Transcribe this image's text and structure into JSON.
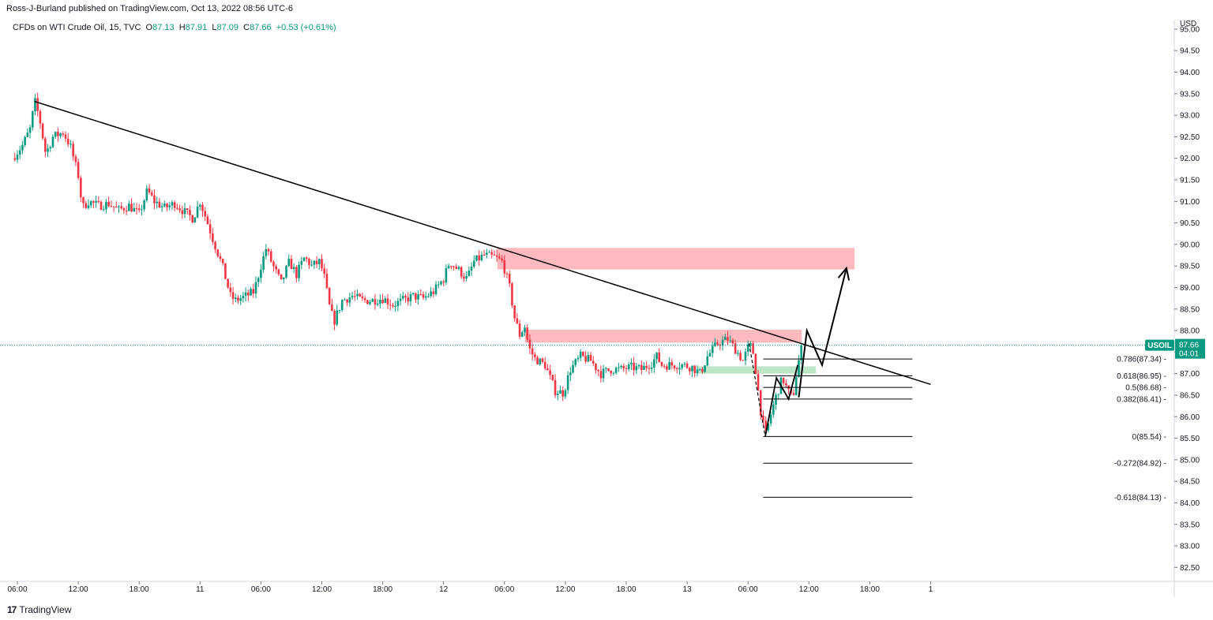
{
  "publisher": "Ross-J-Burland published on TradingView.com, Oct 13, 2022 08:56 UTC-6",
  "legend": {
    "symbol": "CFDs on WTI Crude Oil, 15, TVC",
    "open_label": "O",
    "open": "87.13",
    "high_label": "H",
    "high": "87.91",
    "low_label": "L",
    "low": "87.09",
    "close_label": "C",
    "close": "87.66",
    "change": "+0.53 (+0.61%)"
  },
  "footer": {
    "brand": "TradingView",
    "logo_mark": "17"
  },
  "price_label": {
    "ticker": "USOIL",
    "price": "87.66",
    "countdown": "04:01"
  },
  "colors": {
    "up": "#089981",
    "down": "#f23645",
    "zone_red": "#ffb3b8",
    "zone_green": "#b9e3c4",
    "line": "#000000"
  },
  "chart_data": {
    "type": "candlestick",
    "currency": "USD",
    "timeframe": "15",
    "ylim": [
      82.25,
      95.2
    ],
    "y_ticks": [
      "95.00",
      "94.50",
      "94.00",
      "93.50",
      "93.00",
      "92.50",
      "92.00",
      "91.50",
      "91.00",
      "90.50",
      "90.00",
      "89.50",
      "89.00",
      "88.50",
      "88.00",
      "87.50",
      "87.00",
      "86.50",
      "86.00",
      "85.50",
      "85.00",
      "84.50",
      "84.00",
      "83.50",
      "83.00",
      "82.50"
    ],
    "x_ticks": [
      {
        "label": "06:00",
        "t": 0
      },
      {
        "label": "12:00",
        "t": 6
      },
      {
        "label": "18:00",
        "t": 12
      },
      {
        "label": "11",
        "t": 18
      },
      {
        "label": "06:00",
        "t": 24
      },
      {
        "label": "12:00",
        "t": 30
      },
      {
        "label": "18:00",
        "t": 36
      },
      {
        "label": "12",
        "t": 42
      },
      {
        "label": "06:00",
        "t": 48
      },
      {
        "label": "12:00",
        "t": 54
      },
      {
        "label": "18:00",
        "t": 60
      },
      {
        "label": "13",
        "t": 66
      },
      {
        "label": "06:00",
        "t": 72
      },
      {
        "label": "12:00",
        "t": 78
      },
      {
        "label": "18:00",
        "t": 84
      },
      {
        "label": "1",
        "t": 90
      }
    ],
    "current_price": 87.66,
    "price_path": [
      [
        -0.5,
        92.0
      ],
      [
        0.5,
        92.3
      ],
      [
        1.3,
        92.7
      ],
      [
        1.7,
        93.35
      ],
      [
        2.2,
        92.9
      ],
      [
        2.8,
        92.1
      ],
      [
        3.5,
        92.5
      ],
      [
        4.5,
        92.6
      ],
      [
        5.2,
        92.3
      ],
      [
        6.0,
        91.6
      ],
      [
        6.4,
        90.85
      ],
      [
        7.0,
        91.0
      ],
      [
        8.0,
        90.9
      ],
      [
        9.0,
        90.95
      ],
      [
        10.0,
        90.8
      ],
      [
        11.0,
        90.9
      ],
      [
        12.0,
        90.7
      ],
      [
        12.8,
        91.25
      ],
      [
        13.5,
        91.0
      ],
      [
        14.5,
        90.85
      ],
      [
        15.5,
        90.95
      ],
      [
        16.5,
        90.75
      ],
      [
        17.3,
        90.6
      ],
      [
        18.0,
        91.0
      ],
      [
        18.6,
        90.6
      ],
      [
        19.3,
        90.1
      ],
      [
        20.2,
        89.5
      ],
      [
        21.0,
        88.8
      ],
      [
        21.5,
        88.7
      ],
      [
        22.5,
        88.8
      ],
      [
        23.3,
        88.9
      ],
      [
        24.0,
        89.5
      ],
      [
        24.5,
        89.9
      ],
      [
        25.2,
        89.5
      ],
      [
        26.0,
        89.1
      ],
      [
        26.8,
        89.6
      ],
      [
        27.5,
        89.3
      ],
      [
        28.3,
        89.7
      ],
      [
        29.0,
        89.5
      ],
      [
        29.8,
        89.6
      ],
      [
        30.3,
        89.2
      ],
      [
        30.7,
        88.6
      ],
      [
        31.2,
        88.2
      ],
      [
        32.0,
        88.7
      ],
      [
        33.0,
        88.8
      ],
      [
        34.0,
        88.7
      ],
      [
        35.0,
        88.7
      ],
      [
        36.0,
        88.75
      ],
      [
        37.0,
        88.6
      ],
      [
        38.0,
        88.7
      ],
      [
        39.0,
        88.8
      ],
      [
        40.0,
        88.75
      ],
      [
        41.0,
        88.9
      ],
      [
        42.0,
        89.2
      ],
      [
        42.6,
        89.6
      ],
      [
        43.5,
        89.4
      ],
      [
        44.3,
        89.2
      ],
      [
        45.0,
        89.6
      ],
      [
        46.0,
        89.75
      ],
      [
        47.0,
        89.7
      ],
      [
        47.8,
        89.6
      ],
      [
        48.5,
        89.0
      ],
      [
        49.0,
        88.3
      ],
      [
        49.5,
        87.9
      ],
      [
        50.0,
        88.1
      ],
      [
        50.4,
        87.6
      ],
      [
        51.0,
        87.35
      ],
      [
        52.0,
        87.2
      ],
      [
        53.0,
        86.6
      ],
      [
        53.8,
        86.55
      ],
      [
        54.5,
        87.1
      ],
      [
        55.5,
        87.4
      ],
      [
        56.5,
        87.3
      ],
      [
        57.5,
        87.0
      ],
      [
        58.5,
        87.1
      ],
      [
        59.5,
        87.1
      ],
      [
        60.5,
        87.15
      ],
      [
        61.5,
        87.1
      ],
      [
        62.5,
        87.25
      ],
      [
        63.0,
        87.4
      ],
      [
        63.5,
        87.2
      ],
      [
        64.5,
        87.2
      ],
      [
        65.5,
        87.2
      ],
      [
        66.5,
        87.15
      ],
      [
        67.3,
        87.0
      ],
      [
        68.0,
        87.4
      ],
      [
        69.0,
        87.7
      ],
      [
        70.0,
        87.8
      ],
      [
        70.8,
        87.55
      ],
      [
        71.5,
        87.3
      ],
      [
        72.0,
        87.6
      ],
      [
        72.4,
        87.65
      ],
      [
        72.8,
        87.0
      ],
      [
        73.2,
        86.2
      ],
      [
        73.7,
        85.54
      ],
      [
        74.3,
        86.1
      ],
      [
        74.8,
        86.5
      ],
      [
        75.4,
        86.9
      ],
      [
        75.9,
        86.6
      ],
      [
        76.4,
        86.41
      ],
      [
        76.9,
        87.2
      ],
      [
        77.4,
        87.66
      ]
    ],
    "zones": [
      {
        "type": "supply",
        "t1": 47.3,
        "t2": 82.5,
        "y1": 89.42,
        "y2": 89.92
      },
      {
        "type": "supply",
        "t1": 50.0,
        "t2": 77.3,
        "y1": 87.72,
        "y2": 88.02
      },
      {
        "type": "demand",
        "t1": 67.0,
        "t2": 78.7,
        "y1": 87.0,
        "y2": 87.17
      }
    ],
    "trendline": {
      "t1": 1.7,
      "y1": 93.32,
      "t2": 90.0,
      "y2": 86.75
    },
    "projection": [
      [
        77.0,
        86.45
      ],
      [
        77.8,
        88.0
      ],
      [
        79.3,
        87.2
      ],
      [
        81.7,
        89.45
      ]
    ],
    "fib_drawing": [
      [
        72.1,
        87.7
      ],
      [
        73.7,
        85.54
      ],
      [
        74.8,
        86.9
      ],
      [
        76.0,
        86.41
      ],
      [
        76.9,
        87.2
      ]
    ],
    "fib_levels": [
      {
        "label": "0.786(87.34)",
        "value": 87.34
      },
      {
        "label": "0.618(86.95)",
        "value": 86.95
      },
      {
        "label": "0.5(86.68)",
        "value": 86.68
      },
      {
        "label": "0.382(86.41)",
        "value": 86.41
      },
      {
        "label": "0(85.54)",
        "value": 85.54
      },
      {
        "label": "-0.272(84.92)",
        "value": 84.92
      },
      {
        "label": "-0.618(84.13)",
        "value": 84.13
      }
    ],
    "fib_t_range": [
      73.5,
      88.2
    ]
  }
}
